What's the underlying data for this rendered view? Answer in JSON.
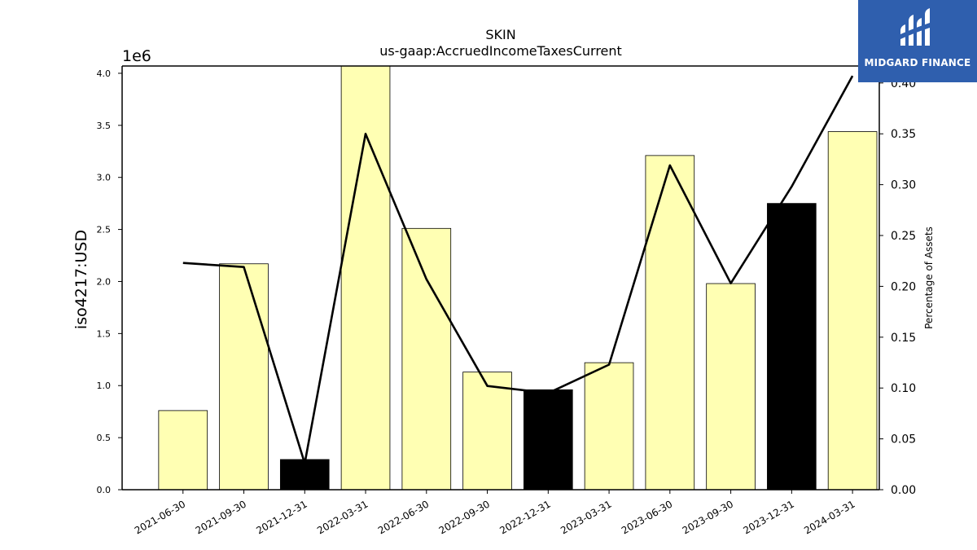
{
  "chart_data": {
    "type": "bar",
    "title": "SKIN",
    "subtitle": "us-gaap:AccruedIncomeTaxesCurrent",
    "ylabel": "iso4217:USD",
    "y2label": "Percentage of Assets",
    "y_offset_text": "1e6",
    "ylim": [
      0,
      4070000
    ],
    "y2lim": [
      0,
      0.4167
    ],
    "yticks": [
      0,
      500000,
      1000000,
      1500000,
      2000000,
      2500000,
      3000000,
      3500000,
      4000000
    ],
    "ytick_labels": [
      "0.0",
      "0.5",
      "1.0",
      "1.5",
      "2.0",
      "2.5",
      "3.0",
      "3.5",
      "4.0"
    ],
    "y2ticks": [
      0,
      0.05,
      0.1,
      0.15,
      0.2,
      0.25,
      0.3,
      0.35,
      0.4
    ],
    "y2tick_labels": [
      "0.00",
      "0.05",
      "0.10",
      "0.15",
      "0.20",
      "0.25",
      "0.30",
      "0.35",
      "0.40"
    ],
    "categories": [
      "2021-06-30",
      "2021-09-30",
      "2021-12-31",
      "2022-03-31",
      "2022-06-30",
      "2022-09-30",
      "2022-12-31",
      "2023-03-31",
      "2023-06-30",
      "2023-09-30",
      "2023-12-31",
      "2024-03-31"
    ],
    "series": [
      {
        "kind": "bar",
        "axis": "left",
        "values": [
          760000,
          2170000,
          290000,
          4070000,
          2510000,
          1130000,
          960000,
          1220000,
          3210000,
          1980000,
          2750000,
          3440000
        ],
        "colors": [
          "#ffffb3",
          "#ffffb3",
          "#000000",
          "#ffffb3",
          "#ffffb3",
          "#ffffb3",
          "#000000",
          "#ffffb3",
          "#ffffb3",
          "#ffffb3",
          "#000000",
          "#ffffb3"
        ]
      },
      {
        "kind": "line",
        "axis": "right",
        "color": "#000000",
        "values": [
          0.223,
          0.219,
          0.026,
          0.35,
          0.207,
          0.102,
          0.095,
          0.123,
          0.319,
          0.203,
          0.298,
          0.407
        ]
      }
    ],
    "grid": false,
    "legend": "none"
  },
  "logo": {
    "text": "MIDGARD FINANCE",
    "background": "#2f5fae"
  }
}
